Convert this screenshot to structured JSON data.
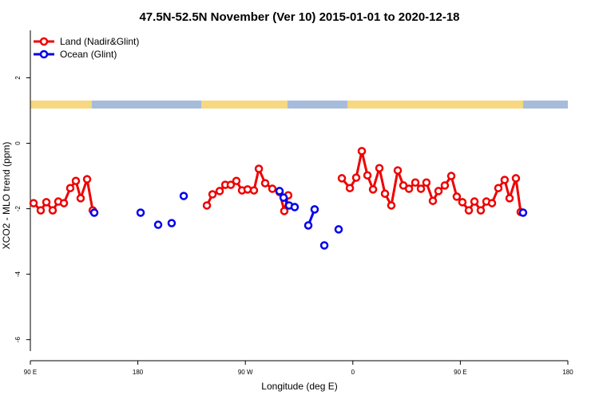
{
  "chart_data": {
    "type": "line",
    "title": "47.5N-52.5N November (Ver 10)   2015-01-01 to 2020-12-18",
    "x_label": "Longitude (deg E)",
    "y_label": "XCO2 - MLO trend (ppm)",
    "xlim": [
      90,
      540
    ],
    "ylim": [
      -6.35,
      3.45
    ],
    "xticks": [
      {
        "value": 90,
        "label": "90 E"
      },
      180,
      {
        "value": 270,
        "label": "90 W"
      },
      {
        "value": 360,
        "label": "0"
      },
      {
        "value": 450,
        "label": "90 E"
      },
      {
        "value": 540,
        "label": "180"
      }
    ],
    "yticks": [
      2,
      0,
      -2,
      -4,
      -6
    ],
    "legend": "top-left",
    "series": [
      {
        "name": "Land (Nadir&Glint)",
        "color": "#ee0000",
        "x": [
          92.7,
          98.7,
          103.4,
          108.7,
          113.4,
          118.1,
          123.4,
          128.1,
          132.1,
          137.5,
          142.2,
          null,
          237.8,
          242.5,
          248.5,
          253.2,
          257.8,
          262.5,
          267.2,
          271.9,
          277.2,
          281.3,
          286.6,
          292.6,
          298.6,
          302.6,
          305.9,
          null,
          350.8,
          357.5,
          362.8,
          367.5,
          372.2,
          376.9,
          382.2,
          386.9,
          392.2,
          397.6,
          402.3,
          407.0,
          412.3,
          417.0,
          421.6,
          427.0,
          431.7,
          437.0,
          442.4,
          447.0,
          451.7,
          457.1,
          461.8,
          467.1,
          471.8,
          476.5,
          481.8,
          487.1,
          491.2,
          496.5,
          500.5
        ],
        "values": [
          -1.83,
          -2.05,
          -1.8,
          -2.05,
          -1.78,
          -1.83,
          -1.37,
          -1.15,
          -1.68,
          -1.1,
          -2.05,
          null,
          -1.9,
          -1.56,
          -1.46,
          -1.27,
          -1.27,
          -1.15,
          -1.44,
          -1.41,
          -1.44,
          -0.78,
          -1.22,
          -1.39,
          -1.49,
          -2.07,
          -1.59,
          null,
          -1.07,
          -1.37,
          -1.05,
          -0.24,
          -0.98,
          -1.41,
          -0.76,
          -1.54,
          -1.9,
          -0.83,
          -1.29,
          -1.39,
          -1.2,
          -1.39,
          -1.2,
          -1.76,
          -1.46,
          -1.29,
          -1.0,
          -1.63,
          -1.8,
          -2.05,
          -1.78,
          -2.05,
          -1.78,
          -1.83,
          -1.37,
          -1.12,
          -1.68,
          -1.07,
          -2.1
        ]
      },
      {
        "name": "Ocean (Glint)",
        "color": "#0000ee",
        "x": [
          143.5,
          null,
          182.3,
          null,
          197.0,
          null,
          208.3,
          null,
          218.4,
          null,
          298.6,
          302.0,
          306.6,
          311.3,
          null,
          322.7,
          328.0,
          null,
          336.1,
          null,
          348.1,
          null,
          502.5
        ],
        "values": [
          -2.12,
          null,
          -2.12,
          null,
          -2.49,
          null,
          -2.44,
          null,
          -1.61,
          null,
          -1.46,
          -1.66,
          -1.9,
          -1.95,
          null,
          -2.51,
          -2.02,
          null,
          -3.12,
          null,
          -2.63,
          null,
          -2.12
        ]
      }
    ]
  }
}
